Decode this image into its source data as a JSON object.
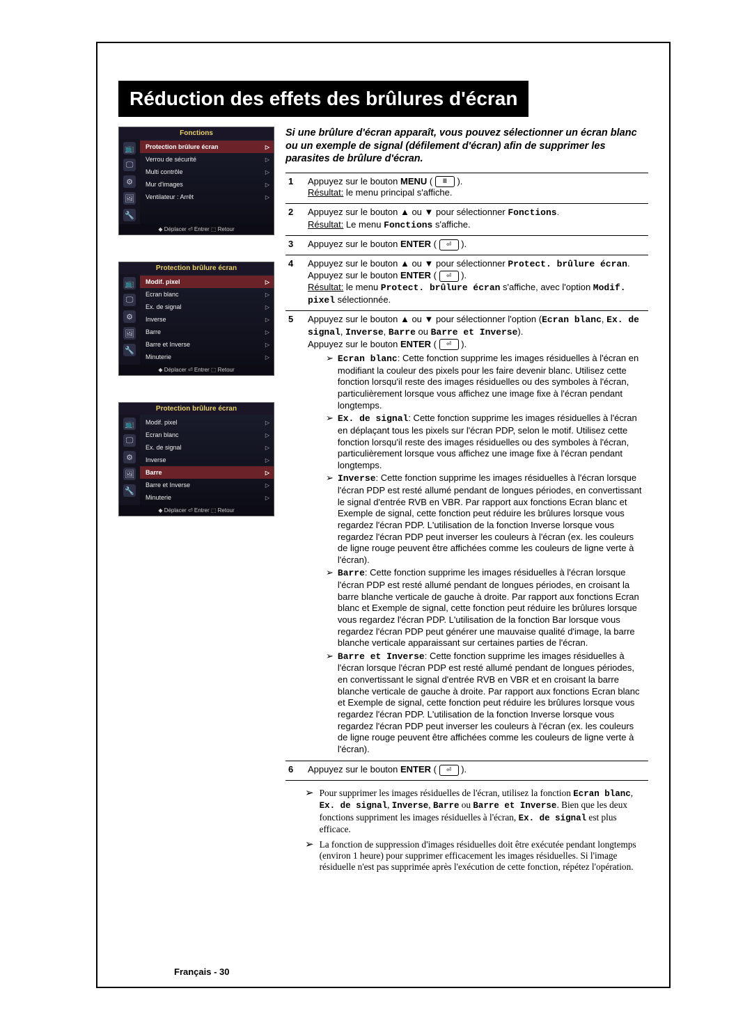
{
  "title": "Réduction des effets des brûlures d'écran",
  "intro": "Si une brûlure d'écran apparaît, vous pouvez sélectionner un écran blanc ou un exemple de signal (défilement d'écran) afin de supprimer les parasites de brûlure d'écran.",
  "osd_icons": [
    "📺",
    "🖵",
    "⚙",
    "🖼",
    "🔧"
  ],
  "osd1": {
    "header": "Fonctions",
    "items": [
      {
        "label": "Protection brûlure écran",
        "sel": true
      },
      {
        "label": "Verrou de sécurité",
        "sel": false
      },
      {
        "label": "Multi contrôle",
        "sel": false
      },
      {
        "label": "Mur d'images",
        "sel": false
      },
      {
        "label": "Ventilateur       : Arrêt",
        "sel": false
      }
    ],
    "footer": "◆ Déplacer  ⏎ Entrer  ⬚ Retour"
  },
  "osd2": {
    "header": "Protection brûlure écran",
    "items": [
      {
        "label": "Modif. pixel",
        "sel": true
      },
      {
        "label": "Ecran blanc",
        "sel": false
      },
      {
        "label": "Ex. de signal",
        "sel": false
      },
      {
        "label": "Inverse",
        "sel": false
      },
      {
        "label": "Barre",
        "sel": false
      },
      {
        "label": "Barre et Inverse",
        "sel": false
      },
      {
        "label": "Minuterie",
        "sel": false
      }
    ],
    "footer": "◆ Déplacer  ⏎ Entrer  ⬚ Retour"
  },
  "osd3": {
    "header": "Protection brûlure écran",
    "items": [
      {
        "label": "Modif. pixel",
        "sel": false
      },
      {
        "label": "Ecran blanc",
        "sel": false
      },
      {
        "label": "Ex. de signal",
        "sel": false
      },
      {
        "label": "Inverse",
        "sel": false
      },
      {
        "label": "Barre",
        "sel": true
      },
      {
        "label": "Barre et Inverse",
        "sel": false
      },
      {
        "label": "Minuterie",
        "sel": false
      }
    ],
    "footer": "◆ Déplacer  ⏎ Entrer  ⬚ Retour"
  },
  "step1": {
    "num": "1",
    "line1a": "Appuyez sur le bouton ",
    "line1b": "MENU",
    "line1c": " ( ",
    "line1e": " ).",
    "res_label": "Résultat:",
    "res_text": "   le menu principal s'affiche."
  },
  "step2": {
    "num": "2",
    "line1": "Appuyez sur le bouton ▲ ou ▼ pour sélectionner ",
    "mono1": "Fonctions",
    "line1end": ".",
    "res_label": "Résultat:",
    "res_a": "   Le menu ",
    "res_mono": "Fonctions",
    "res_b": " s'affiche."
  },
  "step3": {
    "num": "3",
    "text": "Appuyez sur le bouton ",
    "bold": "ENTER",
    "after": " ( ",
    "icon": "⏎",
    "end": " )."
  },
  "step4": {
    "num": "4",
    "l1": "Appuyez sur le bouton ▲ ou ▼ pour sélectionner ",
    "m1": "Protect. brûlure écran",
    "l1end": ".",
    "l2a": "Appuyez sur le bouton ",
    "l2b": "ENTER",
    "l2c": " ( ",
    "l2icon": "⏎",
    "l2d": " ).",
    "res_label": "Résultat:",
    "res1": "   le menu ",
    "res_m1": "Protect. brûlure écran",
    "res2": " s'affiche, avec l'option ",
    "res_m2": "Modif. pixel",
    "res3": " sélectionnée."
  },
  "step5": {
    "num": "5",
    "l1": "Appuyez sur le bouton ▲ ou ▼ pour sélectionner l'option (",
    "m1": "Ecran blanc",
    "c1": ", ",
    "m2": "Ex. de signal",
    "c2": ", ",
    "m3": "Inverse",
    "c3": ", ",
    "m4": "Barre",
    "c4": " ou ",
    "m5": "Barre et Inverse",
    "l1end": ").",
    "l2a": "Appuyez sur le bouton ",
    "l2b": "ENTER",
    "l2c": " ( ",
    "l2icon": "⏎",
    "l2d": " ).",
    "sub": [
      {
        "h": "Ecran blanc",
        "t": ": Cette fonction supprime les images résiduelles à l'écran en modifiant la couleur des pixels pour les faire devenir blanc. Utilisez cette fonction lorsqu'il reste des images résiduelles ou des symboles à l'écran, particulièrement lorsque vous affichez une image fixe à l'écran pendant longtemps."
      },
      {
        "h": "Ex. de signal",
        "t": ": Cette fonction supprime les images résiduelles à l'écran en déplaçant tous les pixels sur l'écran PDP, selon le motif. Utilisez cette fonction lorsqu'il reste des images résiduelles ou des symboles à l'écran, particulièrement lorsque vous affichez une image fixe à l'écran pendant longtemps."
      },
      {
        "h": "Inverse",
        "t": ": Cette fonction supprime les images résiduelles à l'écran lorsque l'écran PDP est resté allumé pendant de longues périodes, en convertissant le signal d'entrée RVB en VBR. Par rapport aux fonctions Ecran blanc et Exemple de signal, cette fonction peut réduire les brûlures lorsque vous regardez l'écran PDP. L'utilisation de la fonction Inverse lorsque vous regardez l'écran PDP peut inverser les couleurs à l'écran (ex. les couleurs de ligne rouge peuvent être affichées comme les couleurs de ligne verte à l'écran)."
      },
      {
        "h": "Barre",
        "t": ": Cette fonction supprime les images résiduelles à l'écran lorsque l'écran PDP est resté allumé pendant de longues périodes, en croisant la barre blanche verticale de gauche à droite. Par rapport aux fonctions Ecran blanc et Exemple de signal, cette fonction peut réduire les brûlures lorsque vous regardez l'écran PDP. L'utilisation de la fonction Bar lorsque vous regardez l'écran PDP peut générer une mauvaise qualité d'image, la barre blanche verticale apparaissant sur certaines parties de l'écran."
      },
      {
        "h": "Barre et Inverse",
        "t": ": Cette fonction supprime les images résiduelles à l'écran lorsque l'écran PDP est resté allumé pendant de longues périodes, en convertissant le signal d'entrée RVB en VBR et en croisant la barre blanche verticale de gauche à droite. Par rapport aux fonctions Ecran blanc et Exemple de signal, cette fonction peut réduire les brûlures lorsque vous regardez l'écran PDP. L'utilisation de la fonction Inverse lorsque vous regardez l'écran PDP peut inverser les couleurs à l'écran (ex. les couleurs de ligne rouge peuvent être affichées comme les couleurs de ligne verte à l'écran)."
      }
    ]
  },
  "step6": {
    "num": "6",
    "text": "Appuyez sur le bouton ",
    "bold": "ENTER",
    "after": " ( ",
    "icon": "⏎",
    "end": " )."
  },
  "note1": {
    "a": "Pour supprimer les images résiduelles de l'écran, utilisez la fonction ",
    "m1": "Ecran blanc",
    "c1": ", ",
    "m2": "Ex. de signal",
    "c2": ", ",
    "m3": "Inverse",
    "c3": ", ",
    "m4": "Barre",
    "c4": " ou ",
    "m5": "Barre et Inverse",
    "b": ". Bien que les deux fonctions suppriment les images résiduelles à l'écran, ",
    "m6": "Ex. de signal",
    "c": " est plus efficace."
  },
  "note2": "La fonction de suppression d'images résiduelles doit être exécutée pendant longtemps (environ 1 heure) pour supprimer efficacement les images résiduelles. Si l'image résiduelle n'est pas supprimée après l'exécution de cette fonction, répétez l'opération.",
  "page_num": "Français - 30"
}
